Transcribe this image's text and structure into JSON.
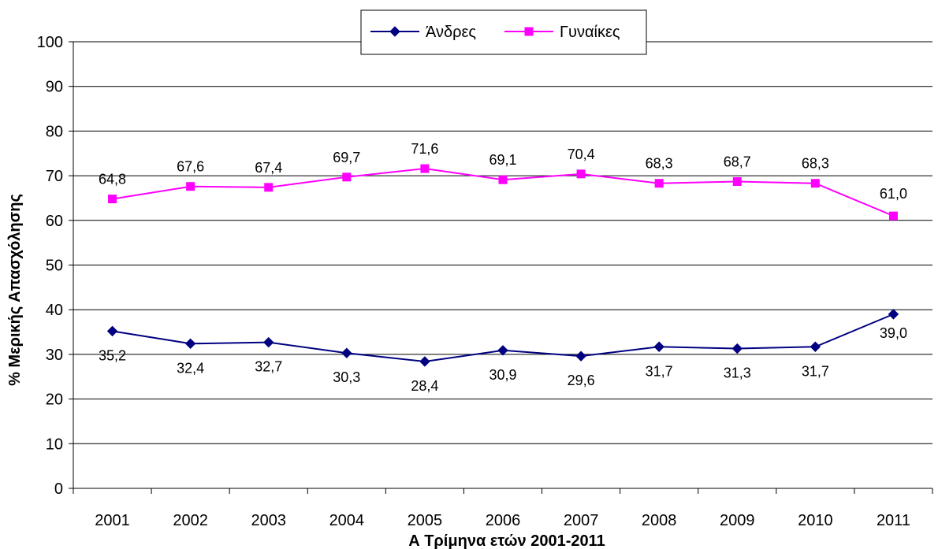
{
  "chart_data": {
    "type": "line",
    "xlabel": "Α Τρίμηνα ετών 2001-2011",
    "ylabel": "% Μερικής Απασχόλησης",
    "ylim": [
      0,
      100
    ],
    "ytick_step": 10,
    "grid": true,
    "legend_position": "top",
    "categories": [
      "2001",
      "2002",
      "2003",
      "2004",
      "2005",
      "2006",
      "2007",
      "2008",
      "2009",
      "2010",
      "2011"
    ],
    "series": [
      {
        "name": "Άνδρες",
        "color": "#000080",
        "marker": "diamond",
        "values": [
          35.2,
          32.4,
          32.7,
          30.3,
          28.4,
          30.9,
          29.6,
          31.7,
          31.3,
          31.7,
          39.0
        ],
        "labels": [
          "35,2",
          "32,4",
          "32,7",
          "30,3",
          "28,4",
          "30,9",
          "29,6",
          "31,7",
          "31,3",
          "31,7",
          "39,0"
        ],
        "label_position": "below"
      },
      {
        "name": "Γυναίκες",
        "color": "#ff00ff",
        "marker": "square",
        "values": [
          64.8,
          67.6,
          67.4,
          69.7,
          71.6,
          69.1,
          70.4,
          68.3,
          68.7,
          68.3,
          61.0
        ],
        "labels": [
          "64,8",
          "67,6",
          "67,4",
          "69,7",
          "71,6",
          "69,1",
          "70,4",
          "68,3",
          "68,7",
          "68,3",
          "61,0"
        ],
        "label_position": "above"
      }
    ]
  }
}
